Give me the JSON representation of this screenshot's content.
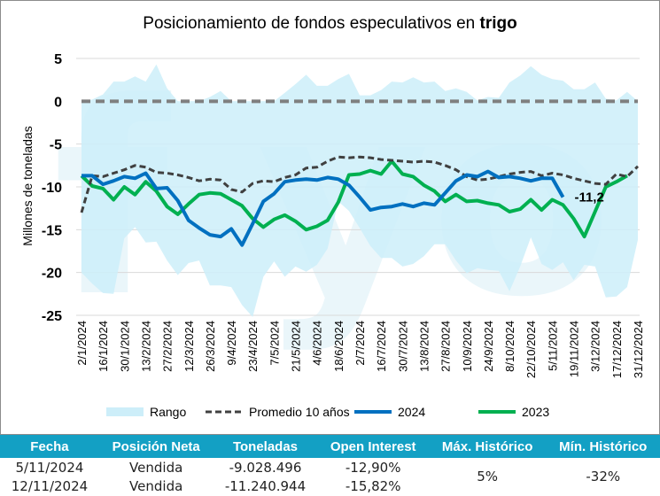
{
  "title": {
    "prefix": "Posicionamiento de fondos especulativos en ",
    "bold": "trigo"
  },
  "chart_data": {
    "type": "line",
    "title": "Posicionamiento de fondos especulativos en trigo",
    "ylabel": "Millones de toneladas",
    "xlabel": "",
    "ylim": [
      -25,
      5
    ],
    "yticks": [
      5,
      0,
      -5,
      -10,
      -15,
      -20,
      -25
    ],
    "grid": true,
    "legend_position": "bottom",
    "x_tick_labels": [
      "2/1/2024",
      "16/1/2024",
      "30/1/2024",
      "13/2/2024",
      "27/2/2024",
      "12/3/2024",
      "26/3/2024",
      "9/4/2024",
      "23/4/2024",
      "7/5/2024",
      "21/5/2024",
      "4/6/2024",
      "18/6/2024",
      "2/7/2024",
      "16/7/2024",
      "30/7/2024",
      "13/8/2024",
      "27/8/2024",
      "10/9/2024",
      "24/9/2024",
      "8/10/2024",
      "22/10/2024",
      "5/11/2024",
      "19/11/2024",
      "3/12/2024",
      "17/12/2024",
      "31/12/2024"
    ],
    "n_points": 53,
    "range": {
      "name": "Rango",
      "upper": [
        0,
        0.2,
        0.8,
        2.3,
        2.3,
        2.9,
        2.3,
        4.3,
        1.5,
        0,
        0,
        0,
        0.5,
        1.2,
        0,
        0,
        0,
        0,
        0,
        1.0,
        2.0,
        3.1,
        1.8,
        1.8,
        2.6,
        3.2,
        0.7,
        0.7,
        1.3,
        2.3,
        2.2,
        2.8,
        2.2,
        2.3,
        1.2,
        1.5,
        1.1,
        0.1,
        0.5,
        0.4,
        2.2,
        3.0,
        4.1,
        3.1,
        2.6,
        2.4,
        1.4,
        1.4,
        2.2,
        0.3,
        0.1,
        1.1,
        0
      ],
      "lower": [
        -20.0,
        -21.3,
        -22.4,
        -22.5,
        -16.0,
        -14.7,
        -16.5,
        -16.4,
        -18.6,
        -20.3,
        -18.9,
        -18.6,
        -21.5,
        -21.5,
        -21.7,
        -23.8,
        -25.2,
        -20.5,
        -18.7,
        -20.5,
        -19.3,
        -19.9,
        -19.1,
        -17.2,
        -11.7,
        -12.8,
        -14.8,
        -16.9,
        -18.3,
        -18.3,
        -19.3,
        -19.0,
        -18.1,
        -16.7,
        -16.7,
        -18.6,
        -20.1,
        -19.5,
        -19.7,
        -19.8,
        -22.2,
        -19.3,
        -15.9,
        -19.0,
        -19.7,
        -18.8,
        -20.9,
        -19.1,
        -19.3,
        -22.9,
        -22.8,
        -21.7,
        -16.2
      ],
      "color": "#cdeef9"
    },
    "zero_line": {
      "value": 0,
      "color": "#7f7f7f"
    },
    "series": [
      {
        "name": "Promedio 10 años",
        "color": "#404040",
        "dashed": true,
        "values": [
          -13.0,
          -8.7,
          -8.8,
          -8.4,
          -8.0,
          -7.5,
          -7.7,
          -8.3,
          -8.4,
          -8.6,
          -8.9,
          -9.3,
          -9.1,
          -9.2,
          -10.3,
          -10.6,
          -9.6,
          -9.3,
          -9.4,
          -8.9,
          -8.6,
          -7.8,
          -7.7,
          -7.0,
          -6.5,
          -6.6,
          -6.5,
          -6.6,
          -6.8,
          -6.9,
          -7.0,
          -7.1,
          -7.0,
          -7.1,
          -7.5,
          -8.0,
          -8.8,
          -9.2,
          -9.1,
          -8.8,
          -8.5,
          -8.3,
          -8.2,
          -8.7,
          -8.4,
          -8.6,
          -9.0,
          -9.3,
          -9.6,
          -9.7,
          -8.5,
          -8.8,
          -7.6
        ]
      },
      {
        "name": "2024",
        "color": "#0070c0",
        "dashed": false,
        "values": [
          -8.7,
          -8.7,
          -9.7,
          -9.3,
          -8.8,
          -9.0,
          -8.4,
          -10.2,
          -10.1,
          -11.6,
          -13.9,
          -14.8,
          -15.6,
          -15.8,
          -14.9,
          -16.8,
          -14.3,
          -11.7,
          -10.8,
          -9.4,
          -9.2,
          -9.1,
          -9.2,
          -8.9,
          -9.1,
          -9.8,
          -11.2,
          -12.7,
          -12.4,
          -12.3,
          -12.0,
          -12.3,
          -11.9,
          -12.1,
          -10.7,
          -9.3,
          -8.6,
          -8.8,
          -8.2,
          -8.9,
          -8.8,
          -9.0,
          -9.3,
          -9.0,
          -9.0,
          -11.2
        ]
      },
      {
        "name": "2023",
        "color": "#00b050",
        "dashed": false,
        "values": [
          -8.7,
          -9.9,
          -10.2,
          -11.5,
          -10.0,
          -10.9,
          -9.4,
          -10.5,
          -12.3,
          -13.2,
          -12.0,
          -10.9,
          -10.7,
          -10.8,
          -11.5,
          -12.2,
          -13.7,
          -14.7,
          -13.8,
          -13.3,
          -14.0,
          -15.0,
          -14.6,
          -13.9,
          -11.8,
          -8.6,
          -8.5,
          -8.1,
          -8.5,
          -7.0,
          -8.5,
          -8.8,
          -9.8,
          -10.5,
          -11.7,
          -10.9,
          -11.7,
          -11.6,
          -11.9,
          -12.1,
          -12.9,
          -12.6,
          -11.5,
          -12.7,
          -11.5,
          -12.1,
          -13.7,
          -15.8,
          -12.9,
          -10.0,
          -9.4,
          -8.7
        ]
      }
    ],
    "annotations": [
      {
        "text": "-11,2",
        "series": "2024",
        "index": 45
      }
    ],
    "legend": [
      {
        "label": "Rango",
        "type": "area",
        "color": "#cdeef9"
      },
      {
        "label": "Promedio 10 años",
        "type": "dashed",
        "color": "#404040"
      },
      {
        "label": "2024",
        "type": "line",
        "color": "#0070c0"
      },
      {
        "label": "2023",
        "type": "line",
        "color": "#00b050"
      }
    ]
  },
  "table": {
    "headers": [
      "Fecha",
      "Posición Neta",
      "Toneladas",
      "Open Interest",
      "Máx. Histórico",
      "Mín. Histórico"
    ],
    "rows": [
      {
        "fecha": "5/11/2024",
        "posicion": "Vendida",
        "toneladas": "-9.028.496",
        "open_interest": "-12,90%"
      },
      {
        "fecha": "12/11/2024",
        "posicion": "Vendida",
        "toneladas": "-11.240.944",
        "open_interest": "-15,82%"
      }
    ],
    "max_historico": "5%",
    "min_historico": "-32%",
    "header_color": "#13a0c4"
  }
}
